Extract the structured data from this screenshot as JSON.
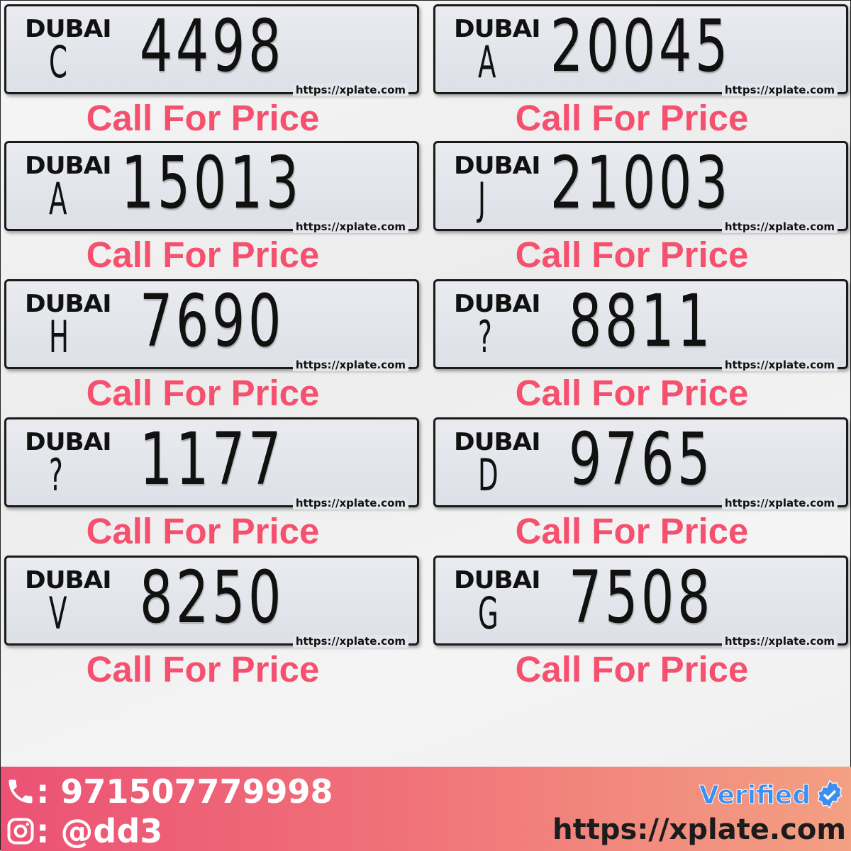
{
  "plates": [
    {
      "emirate": "DUBAI",
      "code": "C",
      "number": "4498",
      "watermark": "https://xplate.com",
      "price": "Call For Price"
    },
    {
      "emirate": "DUBAI",
      "code": "A",
      "number": "20045",
      "watermark": "https://xplate.com",
      "price": "Call For Price"
    },
    {
      "emirate": "DUBAI",
      "code": "A",
      "number": "15013",
      "watermark": "https://xplate.com",
      "price": "Call For Price"
    },
    {
      "emirate": "DUBAI",
      "code": "J",
      "number": "21003",
      "watermark": "https://xplate.com",
      "price": "Call For Price"
    },
    {
      "emirate": "DUBAI",
      "code": "H",
      "number": "7690",
      "watermark": "https://xplate.com",
      "price": "Call For Price"
    },
    {
      "emirate": "DUBAI",
      "code": "?",
      "number": "8811",
      "watermark": "https://xplate.com",
      "price": "Call For Price"
    },
    {
      "emirate": "DUBAI",
      "code": "?",
      "number": "1177",
      "watermark": "https://xplate.com",
      "price": "Call For Price"
    },
    {
      "emirate": "DUBAI",
      "code": "D",
      "number": "9765",
      "watermark": "https://xplate.com",
      "price": "Call For Price"
    },
    {
      "emirate": "DUBAI",
      "code": "V",
      "number": "8250",
      "watermark": "https://xplate.com",
      "price": "Call For Price"
    },
    {
      "emirate": "DUBAI",
      "code": "G",
      "number": "7508",
      "watermark": "https://xplate.com",
      "price": "Call For Price"
    }
  ],
  "footer": {
    "phone": ": 971507779998",
    "instagram": ": @dd3",
    "verified": "Verified",
    "site": "https://xplate.com",
    "icons": {
      "phone": "phone-icon",
      "instagram": "instagram-icon",
      "verified": "verified-badge-icon"
    }
  },
  "colors": {
    "price": "#f5516f",
    "footer_start": "#ec5275",
    "footer_end": "#f3a083",
    "verified": "#3a8ff0"
  }
}
